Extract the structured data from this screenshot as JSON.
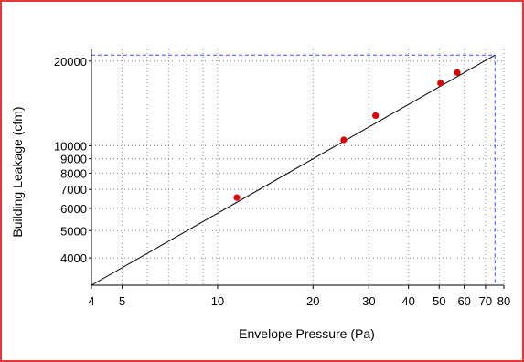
{
  "chart_data": {
    "type": "scatter",
    "title": "",
    "xlabel": "Envelope Pressure (Pa)",
    "ylabel": "Building Leakage (cfm)",
    "x_scale": "log",
    "y_scale": "log",
    "xlim": [
      4,
      80
    ],
    "ylim": [
      3200,
      22000
    ],
    "x_ticks": [
      4,
      5,
      10,
      20,
      30,
      40,
      50,
      60,
      70,
      80
    ],
    "x_tick_labels": [
      "4",
      "5",
      "10",
      "20",
      "30",
      "40",
      "50",
      "60",
      "70",
      "80"
    ],
    "y_ticks": [
      4000,
      5000,
      6000,
      7000,
      8000,
      9000,
      10000,
      20000
    ],
    "y_tick_labels": [
      "4000",
      "5000",
      "6000",
      "7000",
      "8000",
      "9000",
      "10000",
      "20000"
    ],
    "x_minor_gridlines": [
      6,
      7,
      8,
      9
    ],
    "y_minor_gridlines": [],
    "grid": "dotted",
    "points": {
      "x": [
        11.5,
        25,
        31.5,
        50.5,
        57
      ],
      "y": [
        6550,
        10500,
        12800,
        16700,
        18200
      ]
    },
    "fit_line": {
      "x": [
        4,
        75
      ],
      "y": [
        3200,
        21000
      ]
    },
    "reference_lines": {
      "x": 75,
      "y": 21000,
      "style": "dashed"
    },
    "colors": {
      "points": "#dd0000",
      "fit_line": "#000000",
      "reference_lines": "#3355ff",
      "frame": "#e23a3a",
      "grid": "#888888"
    }
  }
}
